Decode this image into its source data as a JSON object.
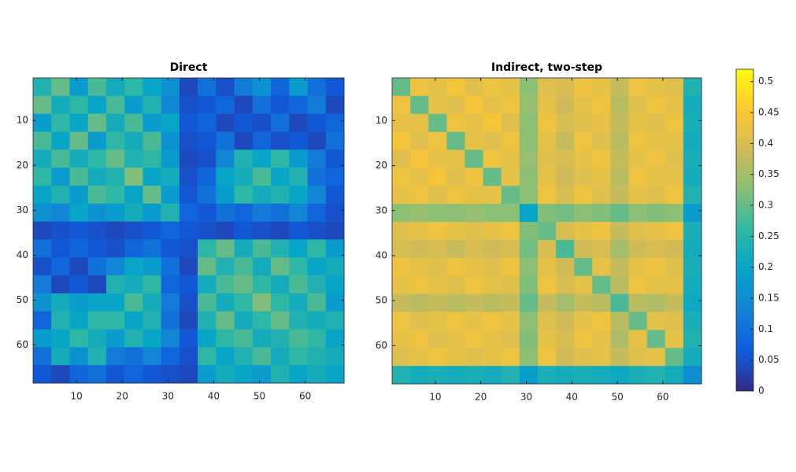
{
  "chart_data": [
    {
      "type": "heatmap",
      "title": "Direct",
      "xlim": [
        0.5,
        68.5
      ],
      "ylim": [
        0.5,
        68.5
      ],
      "xticks": [
        10,
        20,
        30,
        40,
        50,
        60
      ],
      "yticks": [
        10,
        20,
        30,
        40,
        50,
        60
      ],
      "clim": [
        0,
        0.52
      ],
      "colormap": "parula",
      "z": [
        [
          0.24,
          0.3,
          0.18,
          0.28,
          0.22,
          0.26,
          0.2,
          0.16,
          0.04,
          0.1,
          0.05,
          0.12,
          0.16,
          0.08,
          0.18,
          0.1,
          0.06
        ],
        [
          0.3,
          0.22,
          0.26,
          0.2,
          0.28,
          0.18,
          0.24,
          0.14,
          0.05,
          0.06,
          0.08,
          0.04,
          0.1,
          0.06,
          0.08,
          0.12,
          0.04
        ],
        [
          0.18,
          0.26,
          0.2,
          0.3,
          0.22,
          0.28,
          0.18,
          0.2,
          0.06,
          0.08,
          0.04,
          0.06,
          0.05,
          0.1,
          0.04,
          0.06,
          0.08
        ],
        [
          0.28,
          0.2,
          0.3,
          0.18,
          0.26,
          0.22,
          0.28,
          0.16,
          0.05,
          0.06,
          0.1,
          0.04,
          0.08,
          0.05,
          0.06,
          0.04,
          0.1
        ],
        [
          0.22,
          0.28,
          0.22,
          0.26,
          0.3,
          0.24,
          0.26,
          0.18,
          0.04,
          0.05,
          0.14,
          0.24,
          0.2,
          0.26,
          0.18,
          0.12,
          0.06
        ],
        [
          0.26,
          0.18,
          0.28,
          0.22,
          0.24,
          0.32,
          0.2,
          0.22,
          0.05,
          0.08,
          0.2,
          0.22,
          0.28,
          0.2,
          0.24,
          0.1,
          0.08
        ],
        [
          0.2,
          0.24,
          0.18,
          0.28,
          0.26,
          0.2,
          0.3,
          0.18,
          0.06,
          0.1,
          0.18,
          0.26,
          0.22,
          0.24,
          0.2,
          0.14,
          0.06
        ],
        [
          0.16,
          0.14,
          0.2,
          0.16,
          0.18,
          0.22,
          0.18,
          0.24,
          0.08,
          0.06,
          0.1,
          0.08,
          0.12,
          0.1,
          0.14,
          0.08,
          0.05
        ],
        [
          0.04,
          0.05,
          0.06,
          0.05,
          0.04,
          0.05,
          0.06,
          0.08,
          0.06,
          0.05,
          0.04,
          0.06,
          0.05,
          0.04,
          0.06,
          0.05,
          0.04
        ],
        [
          0.1,
          0.06,
          0.08,
          0.06,
          0.05,
          0.08,
          0.1,
          0.06,
          0.05,
          0.26,
          0.3,
          0.22,
          0.28,
          0.24,
          0.2,
          0.26,
          0.18
        ],
        [
          0.05,
          0.08,
          0.04,
          0.1,
          0.14,
          0.2,
          0.18,
          0.1,
          0.04,
          0.3,
          0.24,
          0.28,
          0.22,
          0.3,
          0.26,
          0.2,
          0.22
        ],
        [
          0.12,
          0.04,
          0.06,
          0.04,
          0.24,
          0.22,
          0.26,
          0.08,
          0.06,
          0.22,
          0.28,
          0.3,
          0.26,
          0.22,
          0.28,
          0.24,
          0.2
        ],
        [
          0.16,
          0.22,
          0.18,
          0.2,
          0.2,
          0.28,
          0.22,
          0.12,
          0.05,
          0.28,
          0.22,
          0.26,
          0.32,
          0.26,
          0.22,
          0.28,
          0.18
        ],
        [
          0.08,
          0.24,
          0.2,
          0.26,
          0.26,
          0.2,
          0.24,
          0.1,
          0.04,
          0.24,
          0.3,
          0.22,
          0.26,
          0.3,
          0.24,
          0.22,
          0.24
        ],
        [
          0.18,
          0.2,
          0.26,
          0.22,
          0.18,
          0.24,
          0.2,
          0.14,
          0.06,
          0.2,
          0.26,
          0.28,
          0.22,
          0.24,
          0.28,
          0.26,
          0.2
        ],
        [
          0.1,
          0.22,
          0.16,
          0.24,
          0.12,
          0.1,
          0.14,
          0.08,
          0.05,
          0.26,
          0.2,
          0.24,
          0.28,
          0.22,
          0.26,
          0.24,
          0.22
        ],
        [
          0.06,
          0.04,
          0.08,
          0.1,
          0.06,
          0.08,
          0.06,
          0.05,
          0.04,
          0.18,
          0.22,
          0.2,
          0.18,
          0.24,
          0.2,
          0.22,
          0.2
        ]
      ]
    },
    {
      "type": "heatmap",
      "title": "Indirect, two-step",
      "xlim": [
        0.5,
        68.5
      ],
      "ylim": [
        0.5,
        68.5
      ],
      "xticks": [
        10,
        20,
        30,
        40,
        50,
        60
      ],
      "yticks": [
        10,
        20,
        30,
        40,
        50,
        60
      ],
      "clim": [
        0,
        0.52
      ],
      "colormap": "parula",
      "colorbar": {
        "ticks": [
          0,
          0.05,
          0.1,
          0.15,
          0.2,
          0.25,
          0.3,
          0.35,
          0.4,
          0.45,
          0.5
        ]
      },
      "z": [
        [
          0.3,
          0.43,
          0.42,
          0.44,
          0.41,
          0.43,
          0.42,
          0.33,
          0.41,
          0.4,
          0.43,
          0.42,
          0.38,
          0.43,
          0.42,
          0.41,
          0.24
        ],
        [
          0.43,
          0.3,
          0.42,
          0.41,
          0.44,
          0.42,
          0.43,
          0.34,
          0.42,
          0.39,
          0.42,
          0.43,
          0.37,
          0.41,
          0.43,
          0.42,
          0.22
        ],
        [
          0.42,
          0.42,
          0.3,
          0.43,
          0.42,
          0.44,
          0.41,
          0.33,
          0.43,
          0.4,
          0.41,
          0.42,
          0.38,
          0.42,
          0.41,
          0.43,
          0.23
        ],
        [
          0.44,
          0.41,
          0.43,
          0.3,
          0.42,
          0.41,
          0.43,
          0.33,
          0.42,
          0.38,
          0.43,
          0.41,
          0.37,
          0.43,
          0.42,
          0.42,
          0.22
        ],
        [
          0.41,
          0.44,
          0.42,
          0.42,
          0.3,
          0.43,
          0.42,
          0.34,
          0.41,
          0.4,
          0.42,
          0.43,
          0.38,
          0.42,
          0.43,
          0.41,
          0.23
        ],
        [
          0.43,
          0.42,
          0.44,
          0.41,
          0.43,
          0.3,
          0.42,
          0.33,
          0.42,
          0.39,
          0.41,
          0.42,
          0.37,
          0.43,
          0.42,
          0.42,
          0.22
        ],
        [
          0.42,
          0.43,
          0.41,
          0.43,
          0.42,
          0.42,
          0.3,
          0.33,
          0.43,
          0.4,
          0.43,
          0.41,
          0.38,
          0.42,
          0.41,
          0.43,
          0.24
        ],
        [
          0.33,
          0.34,
          0.33,
          0.33,
          0.34,
          0.33,
          0.33,
          0.2,
          0.32,
          0.31,
          0.33,
          0.32,
          0.3,
          0.33,
          0.32,
          0.33,
          0.18
        ],
        [
          0.41,
          0.42,
          0.43,
          0.42,
          0.41,
          0.42,
          0.43,
          0.32,
          0.3,
          0.4,
          0.42,
          0.43,
          0.38,
          0.41,
          0.42,
          0.43,
          0.23
        ],
        [
          0.4,
          0.39,
          0.4,
          0.38,
          0.4,
          0.39,
          0.4,
          0.31,
          0.4,
          0.28,
          0.39,
          0.4,
          0.35,
          0.39,
          0.4,
          0.39,
          0.22
        ],
        [
          0.43,
          0.42,
          0.41,
          0.43,
          0.42,
          0.41,
          0.43,
          0.33,
          0.42,
          0.39,
          0.3,
          0.42,
          0.38,
          0.42,
          0.43,
          0.41,
          0.23
        ],
        [
          0.42,
          0.43,
          0.42,
          0.41,
          0.43,
          0.42,
          0.41,
          0.32,
          0.43,
          0.4,
          0.42,
          0.3,
          0.37,
          0.43,
          0.42,
          0.42,
          0.22
        ],
        [
          0.38,
          0.37,
          0.38,
          0.37,
          0.38,
          0.37,
          0.38,
          0.3,
          0.38,
          0.35,
          0.38,
          0.37,
          0.28,
          0.37,
          0.36,
          0.38,
          0.21
        ],
        [
          0.43,
          0.41,
          0.42,
          0.43,
          0.42,
          0.43,
          0.42,
          0.33,
          0.41,
          0.39,
          0.42,
          0.43,
          0.37,
          0.3,
          0.42,
          0.41,
          0.23
        ],
        [
          0.42,
          0.43,
          0.41,
          0.42,
          0.43,
          0.42,
          0.41,
          0.32,
          0.42,
          0.4,
          0.43,
          0.42,
          0.36,
          0.42,
          0.3,
          0.42,
          0.24
        ],
        [
          0.41,
          0.42,
          0.43,
          0.42,
          0.41,
          0.42,
          0.43,
          0.33,
          0.43,
          0.39,
          0.41,
          0.42,
          0.38,
          0.41,
          0.42,
          0.3,
          0.22
        ],
        [
          0.24,
          0.22,
          0.23,
          0.22,
          0.23,
          0.22,
          0.24,
          0.18,
          0.23,
          0.22,
          0.23,
          0.22,
          0.21,
          0.23,
          0.24,
          0.22,
          0.15
        ]
      ]
    }
  ]
}
